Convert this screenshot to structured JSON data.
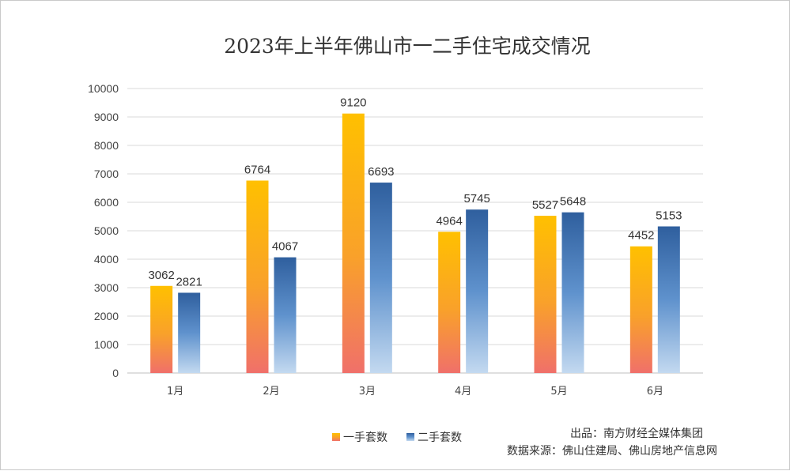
{
  "chart_data": {
    "type": "bar",
    "title": "2023年上半年佛山市一二手住宅成交情况",
    "categories": [
      "1月",
      "2月",
      "3月",
      "4月",
      "5月",
      "6月"
    ],
    "series": [
      {
        "name": "一手套数",
        "values": [
          3062,
          6764,
          9120,
          4964,
          5527,
          4452
        ]
      },
      {
        "name": "二手套数",
        "values": [
          2821,
          4067,
          6693,
          5745,
          5648,
          5153
        ]
      }
    ],
    "ylim": [
      0,
      10000
    ],
    "yticks": [
      0,
      1000,
      2000,
      3000,
      4000,
      5000,
      6000,
      7000,
      8000,
      9000,
      10000
    ],
    "grid": true,
    "legend_position": "bottom-center",
    "data_labels": true
  },
  "source": {
    "line1": "出品：南方财经全媒体集团",
    "line2": "数据来源：佛山住建局、佛山房地产信息网"
  },
  "colors": {
    "series1_top": "#ffc000",
    "series1_bottom": "#f0706a",
    "series2_top": "#2f5f9e",
    "series2_bottom": "#bcd4ee",
    "gridline": "#d9d9d9",
    "axis": "#bfbfbf"
  }
}
